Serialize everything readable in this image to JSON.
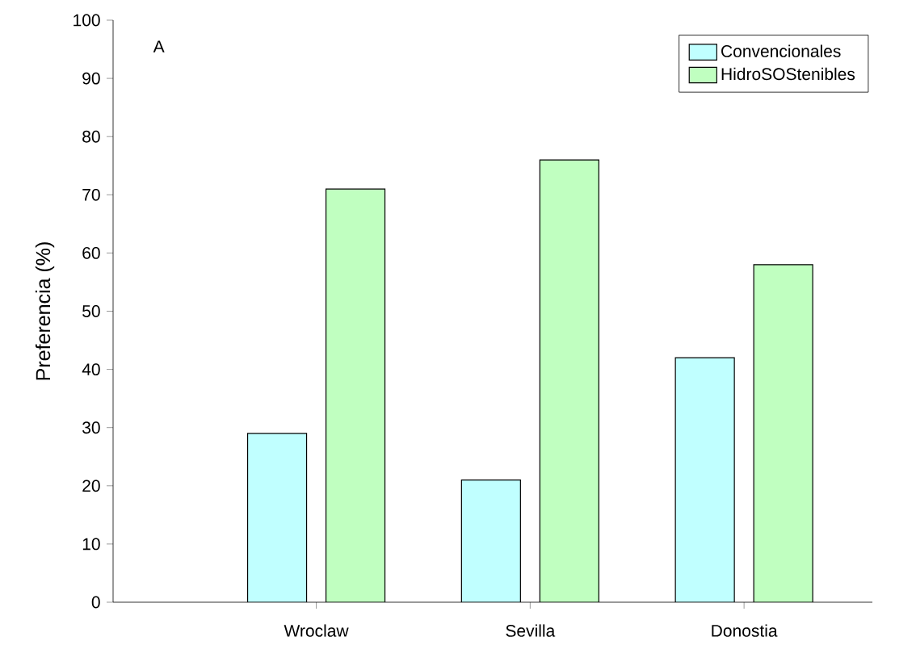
{
  "chart_data": {
    "type": "bar",
    "ylabel": "Preferencia (%)",
    "categories": [
      "Wroclaw",
      "Sevilla",
      "Donostia"
    ],
    "series": [
      {
        "name": "Convencionales",
        "color": "#c0ffff",
        "values": [
          29,
          21,
          42
        ]
      },
      {
        "name": "HidroSOStenibles",
        "color": "#c0ffc0",
        "values": [
          71,
          76,
          58
        ]
      }
    ],
    "ylim": [
      0,
      100
    ],
    "yticks": [
      0,
      10,
      20,
      30,
      40,
      50,
      60,
      70,
      80,
      90,
      100
    ],
    "legend": "top right",
    "grid": false,
    "annotations": [
      "A"
    ]
  }
}
